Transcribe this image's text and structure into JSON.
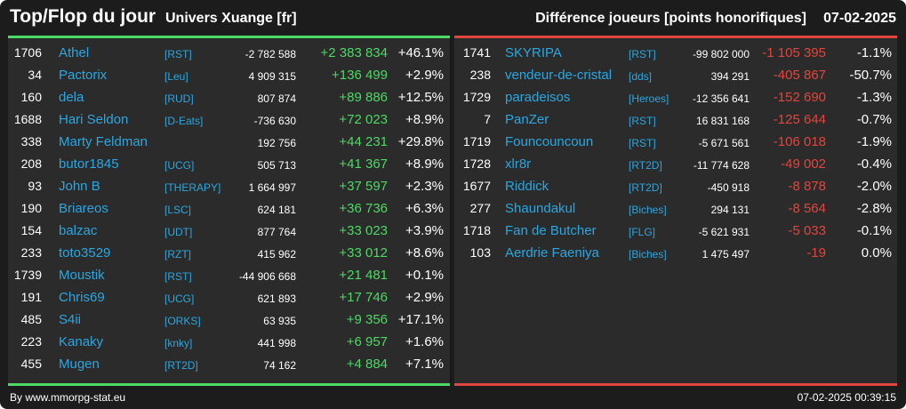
{
  "header": {
    "title": "Top/Flop du jour",
    "universe": "Univers Xuange [fr]",
    "metric": "Différence joueurs [points honorifiques]",
    "date": "07-02-2025"
  },
  "colors": {
    "positive": "#4cd964",
    "negative": "#e0463d",
    "link": "#2aa7e0",
    "background": "#1c1c1c",
    "panel": "#2b2b2b"
  },
  "top": [
    {
      "rank": "1706",
      "name": "Athel",
      "guild": "[RST]",
      "total": "-2 782 588",
      "diff": "+2 383 834",
      "pct": "+46.1%"
    },
    {
      "rank": "34",
      "name": "Pactorix",
      "guild": "[Leu]",
      "total": "4 909 315",
      "diff": "+136 499",
      "pct": "+2.9%"
    },
    {
      "rank": "160",
      "name": "dela",
      "guild": "[RUD]",
      "total": "807 874",
      "diff": "+89 886",
      "pct": "+12.5%"
    },
    {
      "rank": "1688",
      "name": "Hari Seldon",
      "guild": "[D-Eats]",
      "total": "-736 630",
      "diff": "+72 023",
      "pct": "+8.9%"
    },
    {
      "rank": "338",
      "name": "Marty Feldman",
      "guild": "",
      "total": "192 756",
      "diff": "+44 231",
      "pct": "+29.8%"
    },
    {
      "rank": "208",
      "name": "butor1845",
      "guild": "[UCG]",
      "total": "505 713",
      "diff": "+41 367",
      "pct": "+8.9%"
    },
    {
      "rank": "93",
      "name": "John B",
      "guild": "[THERAPY]",
      "total": "1 664 997",
      "diff": "+37 597",
      "pct": "+2.3%"
    },
    {
      "rank": "190",
      "name": "Briareos",
      "guild": "[LSC]",
      "total": "624 181",
      "diff": "+36 736",
      "pct": "+6.3%"
    },
    {
      "rank": "154",
      "name": "balzac",
      "guild": "[UDT]",
      "total": "877 764",
      "diff": "+33 023",
      "pct": "+3.9%"
    },
    {
      "rank": "233",
      "name": "toto3529",
      "guild": "[RZT]",
      "total": "415 962",
      "diff": "+33 012",
      "pct": "+8.6%"
    },
    {
      "rank": "1739",
      "name": "Moustik",
      "guild": "[RST]",
      "total": "-44 906 668",
      "diff": "+21 481",
      "pct": "+0.1%"
    },
    {
      "rank": "191",
      "name": "Chris69",
      "guild": "[UCG]",
      "total": "621 893",
      "diff": "+17 746",
      "pct": "+2.9%"
    },
    {
      "rank": "485",
      "name": "S4ii",
      "guild": "[ORKS]",
      "total": "63 935",
      "diff": "+9 356",
      "pct": "+17.1%"
    },
    {
      "rank": "223",
      "name": "Kanaky",
      "guild": "[knky]",
      "total": "441 998",
      "diff": "+6 957",
      "pct": "+1.6%"
    },
    {
      "rank": "455",
      "name": "Mugen",
      "guild": "[RT2D]",
      "total": "74 162",
      "diff": "+4 884",
      "pct": "+7.1%"
    }
  ],
  "flop": [
    {
      "rank": "1741",
      "name": "SKYRIPA",
      "guild": "[RST]",
      "total": "-99 802 000",
      "diff": "-1 105 395",
      "pct": "-1.1%"
    },
    {
      "rank": "238",
      "name": "vendeur-de-cristal",
      "guild": "[dds]",
      "total": "394 291",
      "diff": "-405 867",
      "pct": "-50.7%"
    },
    {
      "rank": "1729",
      "name": "paradeisos",
      "guild": "[Heroes]",
      "total": "-12 356 641",
      "diff": "-152 690",
      "pct": "-1.3%"
    },
    {
      "rank": "7",
      "name": "PanZer",
      "guild": "[RST]",
      "total": "16 831 168",
      "diff": "-125 644",
      "pct": "-0.7%"
    },
    {
      "rank": "1719",
      "name": "Founcouncoun",
      "guild": "[RST]",
      "total": "-5 671 561",
      "diff": "-106 018",
      "pct": "-1.9%"
    },
    {
      "rank": "1728",
      "name": "xlr8r",
      "guild": "[RT2D]",
      "total": "-11 774 628",
      "diff": "-49 002",
      "pct": "-0.4%"
    },
    {
      "rank": "1677",
      "name": "Riddick",
      "guild": "[RT2D]",
      "total": "-450 918",
      "diff": "-8 878",
      "pct": "-2.0%"
    },
    {
      "rank": "277",
      "name": "Shaundakul",
      "guild": "[Biches]",
      "total": "294 131",
      "diff": "-8 564",
      "pct": "-2.8%"
    },
    {
      "rank": "1718",
      "name": "Fan de Butcher",
      "guild": "[FLG]",
      "total": "-5 621 931",
      "diff": "-5 033",
      "pct": "-0.1%"
    },
    {
      "rank": "103",
      "name": "Aerdrie Faeniya",
      "guild": "[Biches]",
      "total": "1 475 497",
      "diff": "-19",
      "pct": "0.0%"
    }
  ],
  "footer": {
    "source": "By www.mmorpg-stat.eu",
    "timestamp": "07-02-2025 00:39:15"
  }
}
